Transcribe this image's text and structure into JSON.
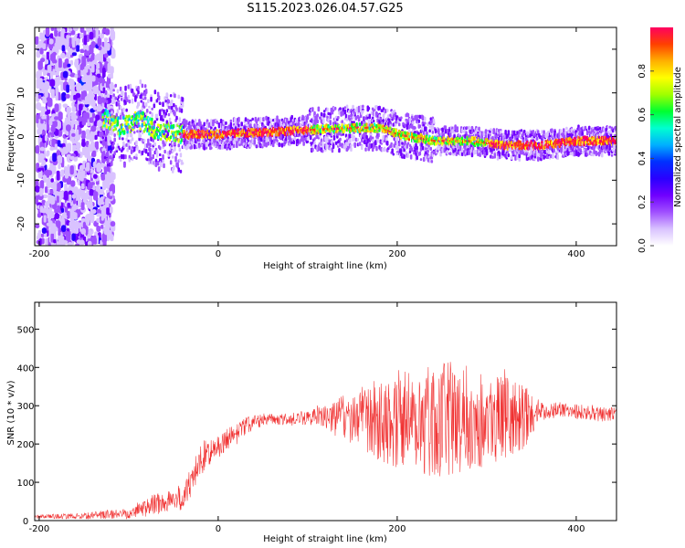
{
  "figure_title": "S115.2023.026.04.57.G25",
  "chart_data": [
    {
      "type": "heatmap",
      "title": "",
      "xlabel": "Height of straight line (km)",
      "ylabel": "Frequency (Hz)",
      "xlim": [
        -205,
        445
      ],
      "ylim": [
        -25,
        25
      ],
      "xticks": [
        -200,
        0,
        200,
        400
      ],
      "yticks": [
        -20,
        -10,
        0,
        10,
        20
      ],
      "grid": false,
      "colorbar": {
        "label": "Normalized spectral amplitude",
        "range": [
          0,
          1
        ],
        "ticks": [
          0.0,
          0.2,
          0.4,
          0.6,
          0.8
        ],
        "colors": [
          "#ffffff",
          "#d9c2ff",
          "#a050ff",
          "#7000ff",
          "#2a00ff",
          "#0030ff",
          "#00b0ff",
          "#00ffd0",
          "#00ff30",
          "#a0ff00",
          "#ffff00",
          "#ffb000",
          "#ff4000",
          "#ff0060"
        ]
      },
      "ridge": {
        "description_points_x_km": [
          -125,
          -110,
          -90,
          -75,
          -60,
          -40,
          0,
          50,
          100,
          150,
          180,
          200,
          240,
          280,
          320,
          360,
          400,
          440
        ],
        "frequency_hz": [
          4,
          2,
          4,
          2,
          1,
          0.5,
          0.5,
          1,
          1.5,
          2,
          2,
          0.5,
          -1,
          -1,
          -2,
          -2,
          -1,
          -1
        ],
        "noise_region_km": [
          -205,
          -120
        ]
      }
    },
    {
      "type": "line",
      "title": "",
      "xlabel": "Height of straight line (km)",
      "ylabel": "SNR (10 * v/v)",
      "xlim": [
        -205,
        445
      ],
      "ylim": [
        0,
        570
      ],
      "xticks": [
        -200,
        0,
        200,
        400
      ],
      "yticks": [
        0,
        100,
        200,
        300,
        400,
        500
      ],
      "grid": false,
      "series": [
        {
          "color": "#f03030",
          "envelope_x": [
            -205,
            -150,
            -100,
            -80,
            -60,
            -40,
            -30,
            -20,
            -10,
            0,
            20,
            40,
            60,
            80,
            100,
            120,
            140,
            160,
            180,
            200,
            220,
            240,
            260,
            280,
            300,
            320,
            340,
            360,
            380,
            400,
            420,
            445
          ],
          "envelope_mean": [
            10,
            12,
            20,
            35,
            50,
            60,
            100,
            160,
            180,
            190,
            230,
            260,
            265,
            265,
            270,
            270,
            270,
            270,
            265,
            265,
            265,
            265,
            265,
            265,
            265,
            270,
            270,
            285,
            290,
            285,
            280,
            275
          ],
          "envelope_spread": [
            5,
            8,
            15,
            25,
            30,
            35,
            40,
            45,
            35,
            30,
            30,
            20,
            15,
            15,
            20,
            30,
            60,
            80,
            110,
            130,
            150,
            150,
            150,
            140,
            120,
            110,
            90,
            25,
            20,
            20,
            20,
            20
          ]
        }
      ]
    }
  ]
}
